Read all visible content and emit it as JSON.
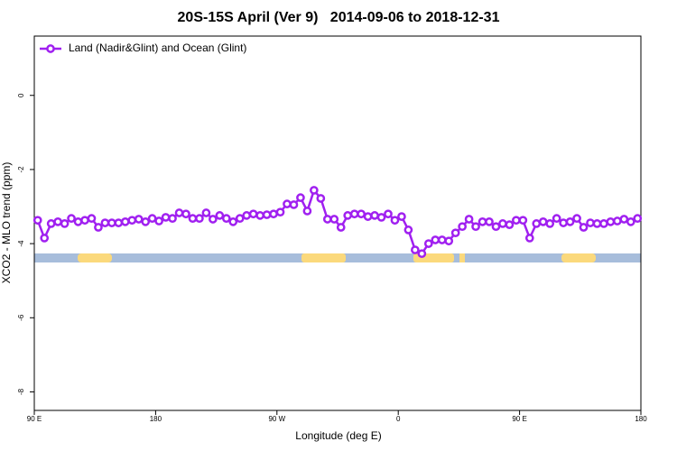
{
  "chart_data": {
    "type": "line",
    "title": "20S-15S April (Ver 9)   2014-09-06 to 2018-12-31",
    "xlabel": "Longitude (deg E)",
    "ylabel": "XCO2 - MLO trend (ppm)",
    "x": [
      92.5,
      97.5,
      102.5,
      107.5,
      112.5,
      117.5,
      122.5,
      127.5,
      132.5,
      137.5,
      142.5,
      147.5,
      152.5,
      157.5,
      162.5,
      167.5,
      172.5,
      177.5,
      182.5,
      187.5,
      192.5,
      197.5,
      202.5,
      207.5,
      212.5,
      217.5,
      222.5,
      227.5,
      232.5,
      237.5,
      242.5,
      247.5,
      252.5,
      257.5,
      262.5,
      267.5,
      272.5,
      277.5,
      282.5,
      287.5,
      292.5,
      297.5,
      302.5,
      307.5,
      312.5,
      317.5,
      322.5,
      327.5,
      332.5,
      337.5,
      342.5,
      347.5,
      352.5,
      357.5,
      362.5,
      367.5,
      372.5,
      377.5,
      382.5,
      387.5,
      392.5,
      397.5,
      402.5,
      407.5,
      412.5,
      417.5,
      422.5,
      427.5,
      432.5,
      437.5,
      442.5,
      447.5,
      452.5,
      457.5,
      462.5,
      467.5,
      472.5,
      477.5,
      482.5,
      487.5,
      492.5,
      497.5,
      502.5,
      507.5,
      512.5,
      517.5,
      522.5,
      527.5,
      532.5,
      537.5
    ],
    "series": [
      {
        "name": "Land (Nadir&Glint) and Ocean (Glint)",
        "color": "#a020f0",
        "values": [
          -3.37,
          -3.85,
          -3.46,
          -3.41,
          -3.46,
          -3.32,
          -3.41,
          -3.37,
          -3.32,
          -3.56,
          -3.44,
          -3.44,
          -3.44,
          -3.41,
          -3.37,
          -3.34,
          -3.41,
          -3.32,
          -3.39,
          -3.29,
          -3.32,
          -3.17,
          -3.2,
          -3.32,
          -3.32,
          -3.17,
          -3.34,
          -3.24,
          -3.32,
          -3.41,
          -3.32,
          -3.24,
          -3.2,
          -3.24,
          -3.22,
          -3.2,
          -3.15,
          -2.93,
          -2.95,
          -2.76,
          -3.12,
          -2.56,
          -2.78,
          -3.34,
          -3.34,
          -3.56,
          -3.24,
          -3.2,
          -3.2,
          -3.27,
          -3.24,
          -3.29,
          -3.2,
          -3.37,
          -3.27,
          -3.63,
          -4.17,
          -4.27,
          -4.0,
          -3.9,
          -3.9,
          -3.93,
          -3.71,
          -3.54,
          -3.34,
          -3.54,
          -3.41,
          -3.41,
          -3.54,
          -3.46,
          -3.49,
          -3.37,
          -3.37,
          -3.85,
          -3.46,
          -3.41,
          -3.46,
          -3.32,
          -3.44,
          -3.41,
          -3.32,
          -3.56,
          -3.44,
          -3.46,
          -3.46,
          -3.41,
          -3.39,
          -3.34,
          -3.41,
          -3.32
        ]
      }
    ],
    "xlim": [
      90,
      540
    ],
    "xticks": [
      {
        "value": 90,
        "label": "90 E"
      },
      180,
      {
        "value": 270,
        "label": "90 W"
      },
      {
        "value": 360,
        "label": "0"
      },
      {
        "value": 450,
        "label": "90 E"
      },
      {
        "value": 540,
        "label": "180"
      }
    ],
    "ylim": [
      -8.5,
      1.6
    ],
    "yticks": [
      0,
      -2,
      -4,
      -6,
      -8
    ],
    "legend": "topleft"
  }
}
